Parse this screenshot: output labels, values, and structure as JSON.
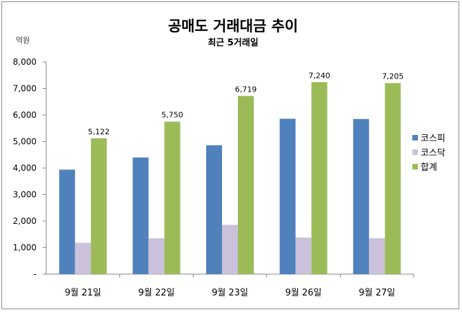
{
  "chart_data": {
    "type": "bar",
    "title": "공매도 거래대금 추이",
    "subtitle": "최근 5거래일",
    "ylabel": "억원",
    "ylim": [
      0,
      8000
    ],
    "yticks": [
      0,
      1000,
      2000,
      3000,
      4000,
      5000,
      6000,
      7000,
      8000
    ],
    "ytick_labels": [
      "-",
      "1,000",
      "2,000",
      "3,000",
      "4,000",
      "5,000",
      "6,000",
      "7,000",
      "8,000"
    ],
    "categories": [
      "9월 21일",
      "9월 22일",
      "9월 23일",
      "9월 26일",
      "9월 27일"
    ],
    "series": [
      {
        "name": "코스피",
        "color": "#4f81bd",
        "values": [
          3940,
          4400,
          4860,
          5860,
          5850
        ]
      },
      {
        "name": "코스닥",
        "color": "#ccc1da",
        "values": [
          1182,
          1350,
          1859,
          1380,
          1355
        ]
      },
      {
        "name": "합계",
        "color": "#9bbb59",
        "values": [
          5122,
          5750,
          6719,
          7240,
          7205
        ]
      }
    ],
    "data_labels": {
      "series": "합계",
      "labels": [
        "5,122",
        "5,750",
        "6,719",
        "7,240",
        "7,205"
      ]
    },
    "legend_position": "right",
    "grid": false
  }
}
